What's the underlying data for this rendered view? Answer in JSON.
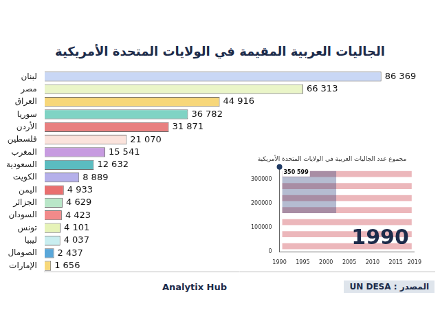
{
  "chart_data": [
    {
      "type": "bar",
      "title": "الجاليات العربية المقيمة في الولايات المتحدة الأمريكية",
      "orientation": "horizontal",
      "categories": [
        "لبنان",
        "مصر",
        "العراق",
        "سوريا",
        "الأردن",
        "فلسطين",
        "المغرب",
        "السعودية",
        "الكويت",
        "اليمن",
        "الجزائر",
        "السودان",
        "تونس",
        "ليبيا",
        "الصومال",
        "الإمارات"
      ],
      "values": [
        86369,
        66313,
        44916,
        36782,
        31871,
        21070,
        15541,
        12632,
        8889,
        4933,
        4629,
        4423,
        4101,
        4037,
        2437,
        1656
      ],
      "value_labels": [
        "86 369",
        "66 313",
        "44 916",
        "36 782",
        "31 871",
        "21 070",
        "15 541",
        "12 632",
        "8 889",
        "4 933",
        "4 629",
        "4 423",
        "4 101",
        "4 037",
        "2 437",
        "1 656"
      ],
      "colors": [
        "#c9d7f5",
        "#eaf5c8",
        "#f7d77a",
        "#7fd3c4",
        "#e88080",
        "#fbe3dc",
        "#c79be0",
        "#5bbcc0",
        "#b5b0ea",
        "#e96f6f",
        "#b9e6c8",
        "#f28a8a",
        "#e6f3b8",
        "#c9eef0",
        "#5aa7d9",
        "#f7d87a"
      ],
      "xlim": [
        0,
        100000
      ],
      "data_labels": true,
      "tick_labels": "y",
      "grid": false
    },
    {
      "type": "line",
      "title": "مجموع عدد الجاليات العربية في الولايات المتحدة الأمريكية",
      "x": [
        1990
      ],
      "values": [
        350599
      ],
      "value_labels": [
        "350 599"
      ],
      "color": "#1f3a63",
      "marker": "circle",
      "xlim": [
        1990,
        2019
      ],
      "xticks": [
        1990,
        1995,
        2000,
        2005,
        2010,
        2015,
        2019
      ],
      "ylim": [
        0,
        350599
      ],
      "yticks": [
        0,
        100000,
        200000,
        300000
      ],
      "grid": false,
      "data_labels": true,
      "annotations": [
        "1990"
      ]
    }
  ],
  "footer": {
    "brand": "Analytix Hub",
    "source": "المصدر : UN DESA"
  }
}
